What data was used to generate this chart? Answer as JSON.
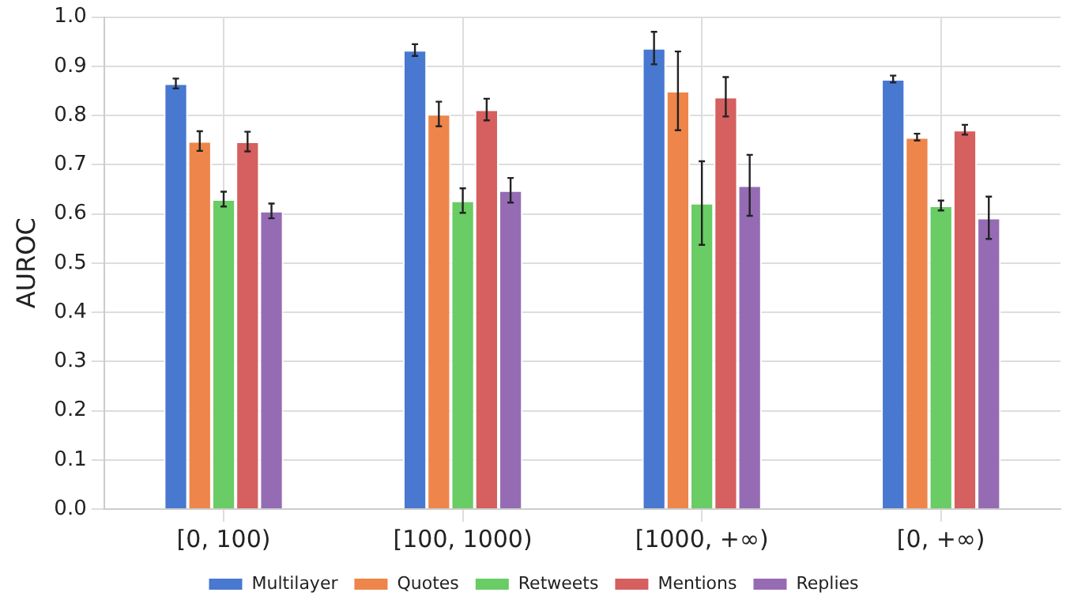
{
  "chart_data": {
    "type": "bar",
    "ylabel": "AUROC",
    "categories": [
      "[0, 100)",
      "[100, 1000)",
      "[1000, +∞)",
      "[0, +∞)"
    ],
    "series": [
      {
        "name": "Multilayer",
        "color": "#4878d0",
        "values": [
          0.865,
          0.933,
          0.937,
          0.874
        ],
        "errors": [
          0.01,
          0.012,
          0.033,
          0.007
        ]
      },
      {
        "name": "Quotes",
        "color": "#ee854a",
        "values": [
          0.748,
          0.803,
          0.85,
          0.756
        ],
        "errors": [
          0.02,
          0.025,
          0.08,
          0.007
        ]
      },
      {
        "name": "Retweets",
        "color": "#6acc64",
        "values": [
          0.63,
          0.627,
          0.622,
          0.617
        ],
        "errors": [
          0.015,
          0.025,
          0.085,
          0.01
        ]
      },
      {
        "name": "Mentions",
        "color": "#d65f5f",
        "values": [
          0.747,
          0.812,
          0.838,
          0.771
        ],
        "errors": [
          0.02,
          0.022,
          0.04,
          0.01
        ]
      },
      {
        "name": "Replies",
        "color": "#956cb4",
        "values": [
          0.606,
          0.648,
          0.658,
          0.592
        ],
        "errors": [
          0.015,
          0.025,
          0.062,
          0.043
        ]
      }
    ],
    "ylim": [
      0,
      1.0
    ],
    "yticks": [
      {
        "value": 0,
        "label": "0.0"
      },
      {
        "value": 0.1,
        "label": "0.1"
      },
      {
        "value": 0.2,
        "label": "0.2"
      },
      {
        "value": 0.3,
        "label": "0.3"
      },
      {
        "value": 0.4,
        "label": "0.4"
      },
      {
        "value": 0.5,
        "label": "0.5"
      },
      {
        "value": 0.6,
        "label": "0.6"
      },
      {
        "value": 0.7,
        "label": "0.7"
      },
      {
        "value": 0.8,
        "label": "0.8"
      },
      {
        "value": 0.9,
        "label": "0.9"
      },
      {
        "value": 1.0,
        "label": "1.0"
      }
    ],
    "grid": true,
    "legend": "bottom"
  }
}
